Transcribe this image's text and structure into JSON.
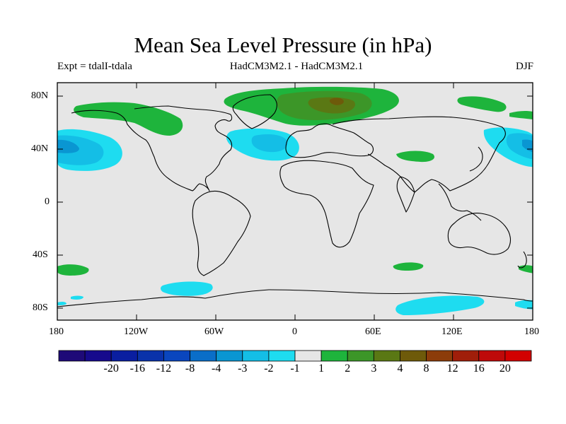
{
  "title": "Mean Sea Level Pressure (in hPa)",
  "subtitle_left": "Expt = tdalI-tdala",
  "subtitle_center": "HadCM3M2.1 - HadCM3M2.1",
  "subtitle_right": "DJF",
  "lat_labels": [
    "80N",
    "40N",
    "0",
    "40S",
    "80S"
  ],
  "lon_labels": [
    "180",
    "120W",
    "60W",
    "0",
    "60E",
    "120E",
    "180"
  ],
  "colorbar": {
    "colors": [
      "#1e0a78",
      "#160a8c",
      "#0a1ea0",
      "#0a32aa",
      "#0a46be",
      "#0a6ec8",
      "#0a96d2",
      "#14bee6",
      "#1edcf0",
      "#e6e6e6",
      "#1eb43c",
      "#3c9628",
      "#5a7814",
      "#6e5a0a",
      "#8c3c0a",
      "#a01e0a",
      "#be0a0a",
      "#d20000"
    ],
    "labels": [
      "-20",
      "-16",
      "-12",
      "-8",
      "-4",
      "-3",
      "-2",
      "-1",
      "1",
      "2",
      "3",
      "4",
      "8",
      "12",
      "16",
      "20"
    ]
  },
  "palette": {
    "background": "#e6e6e6",
    "green_light": "#1eb43c",
    "green_dark": "#3c9628",
    "olive": "#5a7814",
    "brown": "#6e5a0a",
    "cyan": "#1edcf0",
    "blue_mid": "#14bee6",
    "blue_dark": "#0a96d2"
  }
}
